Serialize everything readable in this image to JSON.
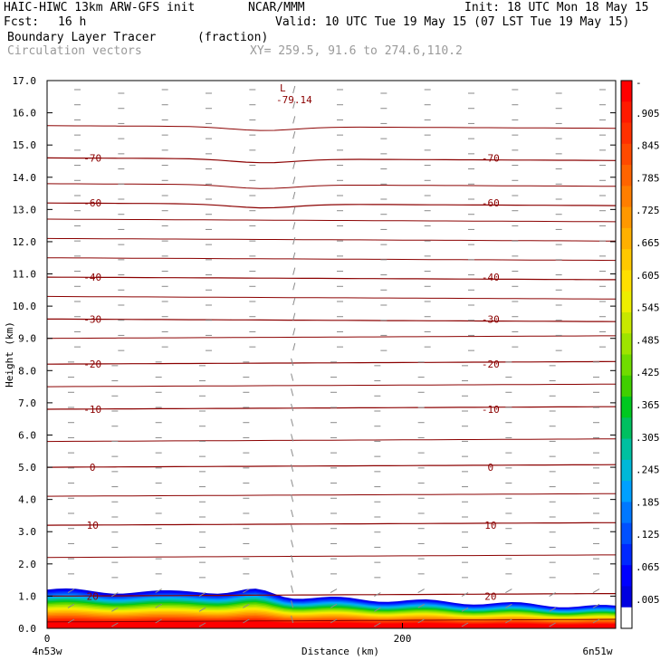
{
  "header": {
    "model": "HAIC-HIWC 13km ARW-GFS init",
    "org": "NCAR/MMM",
    "init": "Init: 18 UTC Mon 18 May 15",
    "fcst_label": "Fcst:",
    "fcst_value": "16 h",
    "valid": "Valid: 10 UTC Tue 19 May 15 (07 LST Tue 19 May 15)",
    "field1": "Boundary Layer Tracer",
    "field1_units": "(fraction)",
    "field2": "Circulation vectors",
    "xy": "XY= 259.5, 91.6 to 274.6,110.2"
  },
  "chart_data": {
    "type": "heatmap",
    "xlabel": "Distance (km)",
    "ylabel": "Height (km)",
    "xlim": [
      0,
      320
    ],
    "ylim": [
      0,
      17
    ],
    "x_ticks": [
      {
        "value": 0,
        "label": "0"
      },
      {
        "value": 200,
        "label": "200"
      }
    ],
    "x_end_labels": [
      "4n53w",
      "6n51w"
    ],
    "y_ticks": [
      "0.0",
      "1.0",
      "2.0",
      "3.0",
      "4.0",
      "5.0",
      "6.0",
      "7.0",
      "8.0",
      "9.0",
      "10.0",
      "11.0",
      "12.0",
      "13.0",
      "14.0",
      "15.0",
      "16.0",
      "17.0"
    ],
    "colorbar": {
      "labels": [
        "-",
        ".905",
        ".845",
        ".785",
        ".725",
        ".665",
        ".605",
        ".545",
        ".485",
        ".425",
        ".365",
        ".305",
        ".245",
        ".185",
        ".125",
        ".065",
        ".005"
      ],
      "colors": [
        "#ff0000",
        "#ff1a00",
        "#ff3000",
        "#ff4a00",
        "#ff6400",
        "#ff7e00",
        "#ff9800",
        "#ffb000",
        "#ffc800",
        "#ffe000",
        "#eeee00",
        "#c8e800",
        "#9ee400",
        "#70dc00",
        "#40d000",
        "#00c820",
        "#00c060",
        "#00c0a0",
        "#00b8d8",
        "#00a0ff",
        "#0078ff",
        "#0050ff",
        "#0028ff",
        "#0000ff",
        "#0000e0",
        "#ffffff"
      ]
    },
    "temperature_isotherms": [
      {
        "label": "20",
        "height_km": 1.0
      },
      {
        "label": "10",
        "height_km": 3.2
      },
      {
        "label": "0",
        "height_km": 5.0
      },
      {
        "label": "-10",
        "height_km": 6.8
      },
      {
        "label": "-20",
        "height_km": 8.2
      },
      {
        "label": "-30",
        "height_km": 9.6
      },
      {
        "label": "-40",
        "height_km": 10.9
      },
      {
        "label": "-60",
        "height_km": 13.2
      },
      {
        "label": "-70",
        "height_km": 14.6
      }
    ],
    "minimum_marker": {
      "symbol": "L",
      "value": "-79.14",
      "x_km": 133,
      "height_km": 16.6
    },
    "boundary_layer_top_km": 1.2
  }
}
